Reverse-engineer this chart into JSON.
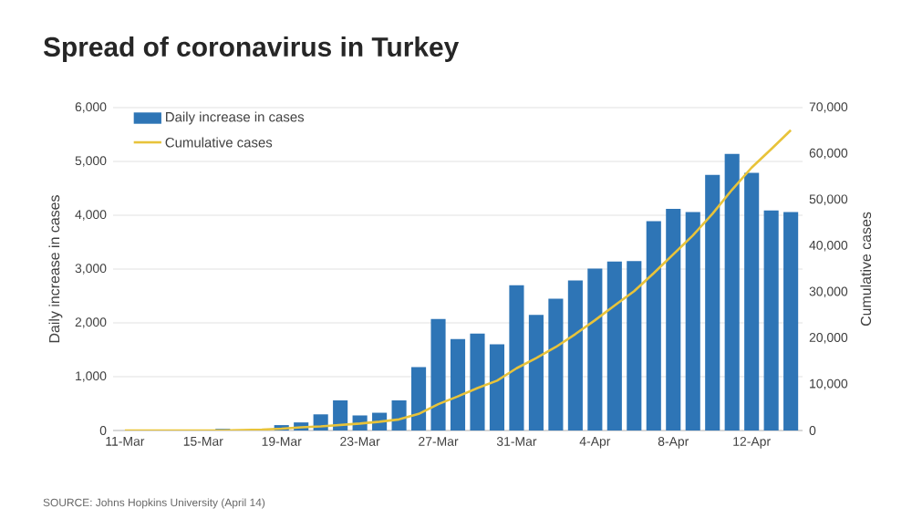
{
  "chart_data": {
    "type": "bar",
    "title": "Spread of coronavirus in Turkey",
    "categories": [
      "11-Mar",
      null,
      null,
      null,
      "15-Mar",
      null,
      null,
      null,
      "19-Mar",
      null,
      null,
      null,
      "23-Mar",
      null,
      null,
      null,
      "27-Mar",
      null,
      null,
      null,
      "31-Mar",
      null,
      null,
      null,
      "4-Apr",
      null,
      null,
      null,
      "8-Apr",
      null,
      null,
      null,
      "12-Apr",
      null,
      null
    ],
    "series": [
      {
        "name": "Daily increase in cases",
        "color": "#2e75b6",
        "values": [
          0,
          0,
          0,
          0,
          10,
          30,
          null,
          null,
          100,
          150,
          300,
          560,
          280,
          330,
          560,
          1180,
          2070,
          1700,
          1800,
          1600,
          2700,
          2150,
          2450,
          2790,
          3010,
          3140,
          3150,
          3890,
          4120,
          4060,
          4750,
          5140,
          4790,
          4090,
          4060
        ]
      },
      {
        "name": "Cumulative cases",
        "type": "line",
        "axis": "y2",
        "color": "#e8c33a",
        "values": [
          0,
          0,
          0,
          0,
          0,
          0,
          100,
          200,
          400,
          700,
          900,
          1200,
          1500,
          1900,
          2400,
          3600,
          5700,
          7400,
          9200,
          10800,
          13500,
          15700,
          18100,
          20900,
          23900,
          27100,
          30200,
          34100,
          38200,
          42300,
          47000,
          52200,
          57000,
          61000,
          65100
        ]
      }
    ],
    "ylabel": "Daily increase in cases",
    "y2label": "Cumulative cases",
    "ylim": [
      0,
      6000
    ],
    "yticks": [
      0,
      {
        "value": 1000,
        "label": "1,000"
      },
      {
        "value": 2000,
        "label": "2,000"
      },
      {
        "value": 3000,
        "label": "3,000"
      },
      {
        "value": 4000,
        "label": "4,000"
      },
      {
        "value": 5000,
        "label": "5,000"
      },
      {
        "value": 6000,
        "label": "6,000"
      }
    ],
    "y2lim": [
      0,
      70000
    ],
    "y2ticks": [
      0,
      {
        "value": 10000,
        "label": "10,000"
      },
      {
        "value": 20000,
        "label": "20,000"
      },
      {
        "value": 30000,
        "label": "30,000"
      },
      {
        "value": 40000,
        "label": "40,000"
      },
      {
        "value": 50000,
        "label": "50,000"
      },
      {
        "value": 60000,
        "label": "60,000"
      },
      {
        "value": 70000,
        "label": "70,000"
      }
    ],
    "grid": "y",
    "legend": "top left",
    "marker": "none",
    "annotations": [
      "SOURCE: Johns Hopkins University (April 14)"
    ]
  }
}
